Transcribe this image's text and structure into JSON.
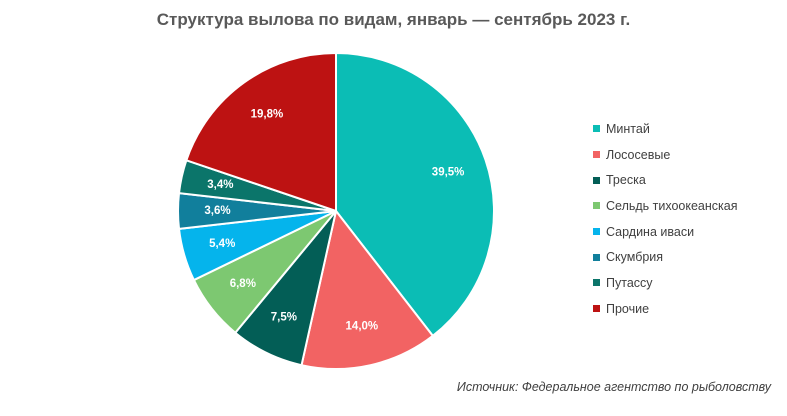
{
  "title": "Структура вылова по видам, январь — сентябрь 2023 г.",
  "source": "Источник: Федеральное агентство по рыболовству",
  "chart_data": {
    "type": "pie",
    "title": "Структура вылова по видам, январь — сентябрь 2023 г.",
    "legend_position": "right",
    "slices": [
      {
        "name": "Минтай",
        "value": 39.5,
        "label": "39,5%",
        "color": "#0bbdb5"
      },
      {
        "name": "Лососевые",
        "value": 14.0,
        "label": "14,0%",
        "color": "#f26363"
      },
      {
        "name": "Треска",
        "value": 7.5,
        "label": "7,5%",
        "color": "#035e56"
      },
      {
        "name": "Сельдь тихоокеанская",
        "value": 6.8,
        "label": "6,8%",
        "color": "#7dc871"
      },
      {
        "name": "Сардина иваси",
        "value": 5.4,
        "label": "5,4%",
        "color": "#05b4ec"
      },
      {
        "name": "Скумбрия",
        "value": 3.6,
        "label": "3,6%",
        "color": "#117f9c"
      },
      {
        "name": "Путассу",
        "value": 3.4,
        "label": "3,4%",
        "color": "#0b756a"
      },
      {
        "name": "Прочие",
        "value": 19.8,
        "label": "19,8%",
        "color": "#bd1212"
      }
    ]
  }
}
